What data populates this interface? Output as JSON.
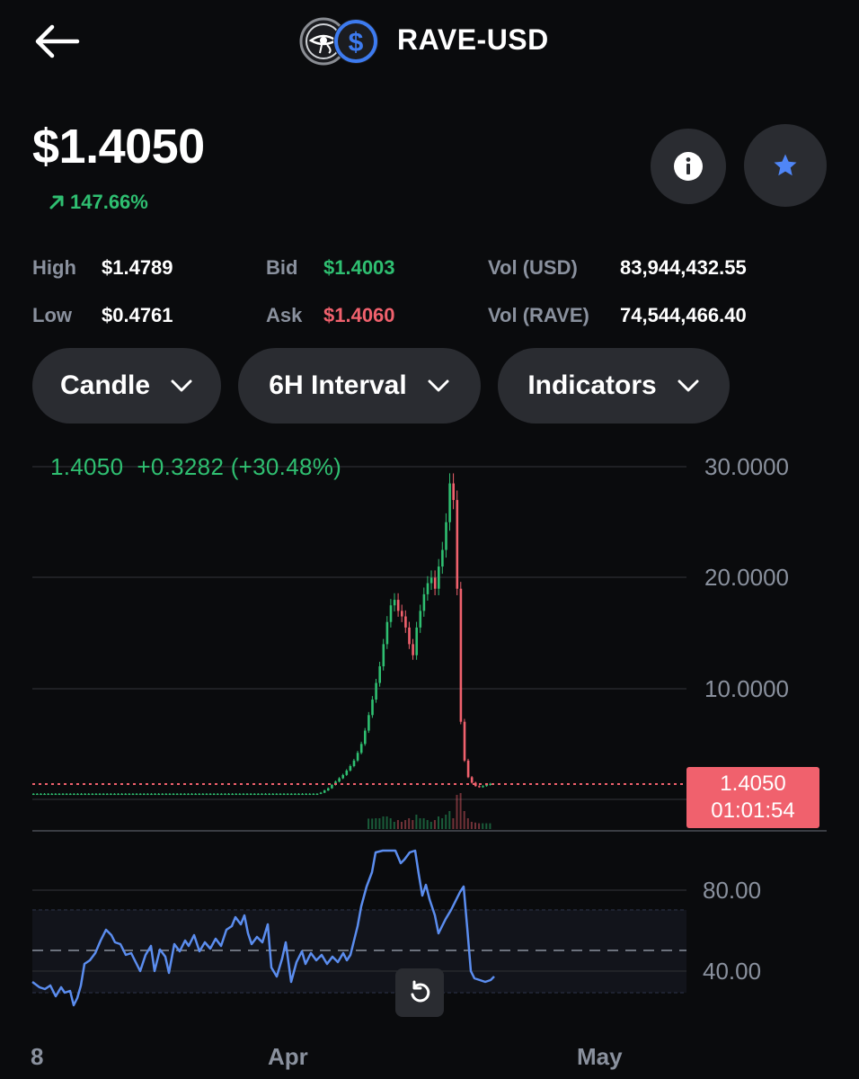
{
  "header": {
    "title": "RAVE-USD",
    "back_icon": "arrow-left-icon",
    "base_logo_icon": "eye-of-horus-icon",
    "quote_logo_icon": "dollar-coin-icon"
  },
  "price": {
    "value": "$1.4050",
    "change_pct": "147.66%",
    "change_icon": "arrow-up-right-icon"
  },
  "actions": {
    "info_icon": "info-icon",
    "favorite_icon": "star-icon"
  },
  "stats": {
    "high_label": "High",
    "high_value": "$1.4789",
    "low_label": "Low",
    "low_value": "$0.4761",
    "bid_label": "Bid",
    "bid_value": "$1.4003",
    "ask_label": "Ask",
    "ask_value": "$1.4060",
    "vol_usd_label": "Vol (USD)",
    "vol_usd_value": "83,944,432.55",
    "vol_rave_label": "Vol (RAVE)",
    "vol_rave_value": "74,544,466.40"
  },
  "controls": {
    "chart_type": "Candle",
    "interval": "6H Interval",
    "indicators": "Indicators"
  },
  "chart": {
    "legend_price": "1.4050",
    "legend_change": "+0.3282 (+30.48%)",
    "last_price_tag": "1.4050",
    "countdown": "01:01:54",
    "y_labels": [
      "30.0000",
      "20.0000",
      "10.0000"
    ],
    "rsi_labels": [
      "80.00",
      "40.00"
    ],
    "x_labels": [
      "8",
      "Apr",
      "May"
    ],
    "reset_icon": "rotate-ccw-icon",
    "colors": {
      "up": "#2fbf71",
      "down": "#f0616d",
      "rsi_line": "#5b8def",
      "axis_text": "#8a919e"
    }
  },
  "chart_data": {
    "type": "candlestick",
    "interval": "6H",
    "y_axis_ticks": [
      10,
      20,
      30
    ],
    "last_price": 1.405,
    "close_approx": [
      0.5,
      0.5,
      0.5,
      0.5,
      0.5,
      0.5,
      0.5,
      0.5,
      0.5,
      0.5,
      0.5,
      0.5,
      0.5,
      0.5,
      0.5,
      0.5,
      0.5,
      0.5,
      0.5,
      0.5,
      0.5,
      0.5,
      0.5,
      0.5,
      0.5,
      0.5,
      0.5,
      0.5,
      0.5,
      0.5,
      0.5,
      0.5,
      0.5,
      0.5,
      0.5,
      0.5,
      0.5,
      0.5,
      0.5,
      0.5,
      0.5,
      0.5,
      0.5,
      0.5,
      0.5,
      0.5,
      0.5,
      0.5,
      0.5,
      0.5,
      0.5,
      0.5,
      0.5,
      0.5,
      0.5,
      0.5,
      0.5,
      0.5,
      0.5,
      0.5,
      0.5,
      0.5,
      0.5,
      0.5,
      0.5,
      0.5,
      0.5,
      0.5,
      0.5,
      0.5,
      0.5,
      0.5,
      0.5,
      0.5,
      0.5,
      0.5,
      0.5,
      0.5,
      0.6,
      0.8,
      1.0,
      1.3,
      1.6,
      1.9,
      2.2,
      2.6,
      3.0,
      3.5,
      4.2,
      5.0,
      6.2,
      7.6,
      9.0,
      10.5,
      12.0,
      14.0,
      16.0,
      17.5,
      18.0,
      17.0,
      16.5,
      15.5,
      14.0,
      13.0,
      15.5,
      17.0,
      18.5,
      19.5,
      20.0,
      19.0,
      21.0,
      22.5,
      25.0,
      28.5,
      27.0,
      19.0,
      7.0,
      3.5,
      2.0,
      1.5,
      1.2,
      1.1,
      1.2,
      1.3,
      1.4
    ],
    "rsi_axis_ticks": [
      40,
      80
    ]
  }
}
